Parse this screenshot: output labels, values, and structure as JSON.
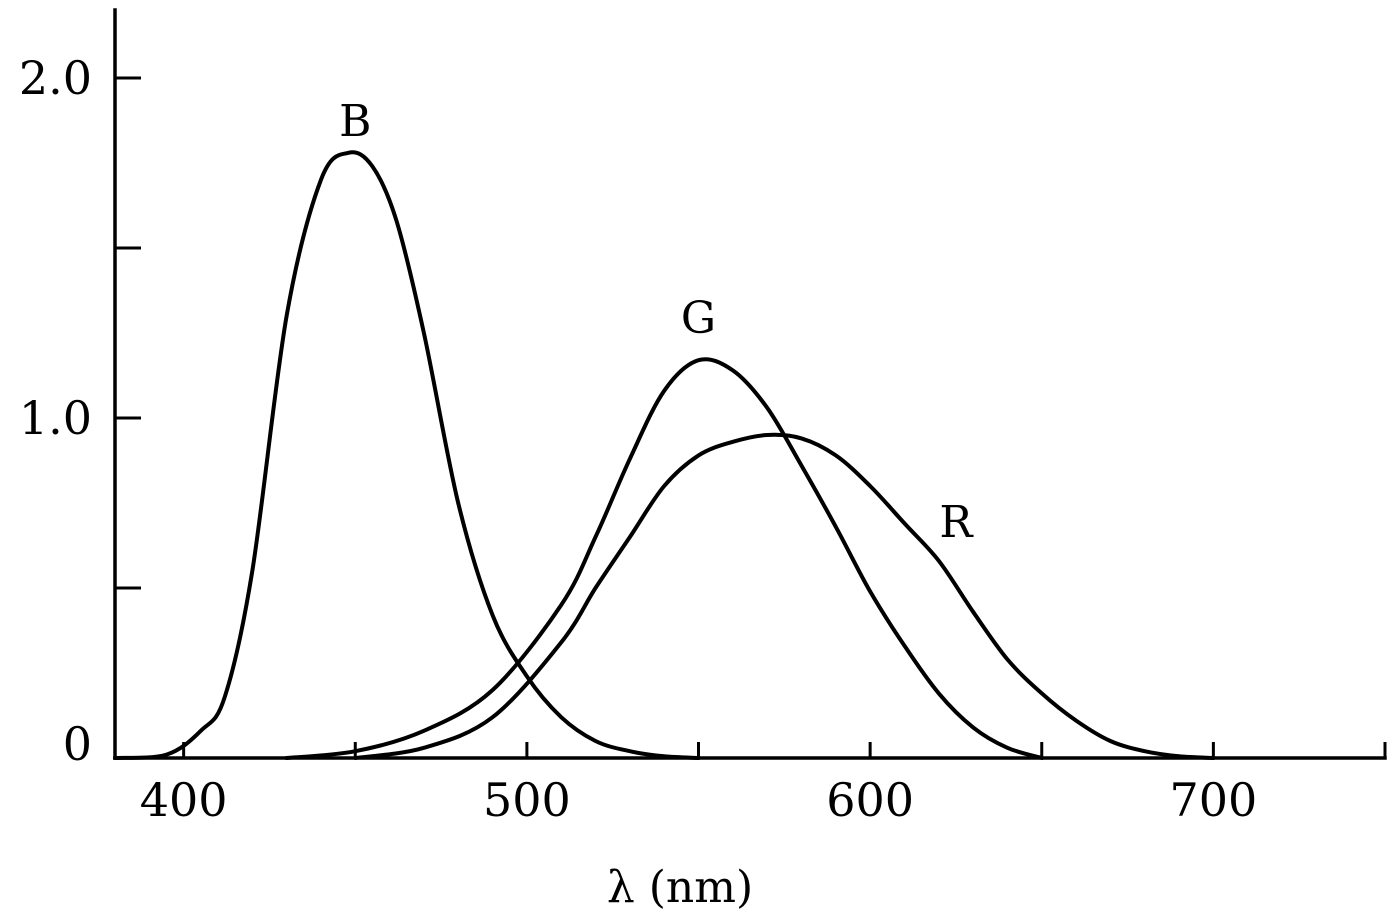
{
  "chart_data": {
    "type": "line",
    "title": "",
    "xlabel": "λ (nm)",
    "ylabel": "",
    "xlim": [
      380,
      750
    ],
    "ylim": [
      0,
      2.2
    ],
    "x_ticks": [
      400,
      450,
      500,
      550,
      600,
      650,
      700,
      750
    ],
    "x_tick_labels": [
      "400",
      "500",
      "600",
      "700"
    ],
    "x_tick_label_values": [
      400,
      500,
      600,
      700
    ],
    "y_ticks": [
      0,
      0.5,
      1.0,
      1.5,
      2.0
    ],
    "y_tick_labels": [
      "0",
      "1.0",
      "2.0"
    ],
    "y_tick_label_values": [
      0,
      1.0,
      2.0
    ],
    "grid": false,
    "legend": "none",
    "series": [
      {
        "name": "B",
        "x": [
          380,
          395,
          405,
          412,
          420,
          430,
          440,
          448,
          455,
          462,
          470,
          480,
          490,
          500,
          510,
          520,
          530,
          540,
          550
        ],
        "y": [
          0,
          0.01,
          0.08,
          0.18,
          0.55,
          1.3,
          1.7,
          1.78,
          1.74,
          1.58,
          1.25,
          0.75,
          0.42,
          0.24,
          0.12,
          0.05,
          0.02,
          0.005,
          0
        ],
        "label_at": [
          450,
          1.83
        ]
      },
      {
        "name": "G",
        "x": [
          430,
          450,
          470,
          490,
          510,
          520,
          530,
          540,
          550,
          560,
          570,
          580,
          590,
          600,
          610,
          620,
          630,
          640,
          650
        ],
        "y": [
          0,
          0.02,
          0.08,
          0.2,
          0.45,
          0.65,
          0.88,
          1.08,
          1.17,
          1.14,
          1.03,
          0.86,
          0.68,
          0.49,
          0.33,
          0.19,
          0.09,
          0.03,
          0
        ],
        "label_at": [
          550,
          1.25
        ]
      },
      {
        "name": "R",
        "x": [
          450,
          470,
          490,
          510,
          520,
          530,
          540,
          550,
          560,
          570,
          580,
          590,
          600,
          610,
          620,
          630,
          640,
          650,
          660,
          670,
          680,
          690,
          700
        ],
        "y": [
          0,
          0.03,
          0.12,
          0.34,
          0.5,
          0.65,
          0.8,
          0.89,
          0.93,
          0.95,
          0.94,
          0.89,
          0.8,
          0.69,
          0.58,
          0.43,
          0.29,
          0.19,
          0.11,
          0.05,
          0.02,
          0.005,
          0
        ],
        "label_at": [
          625,
          0.65
        ]
      }
    ]
  }
}
